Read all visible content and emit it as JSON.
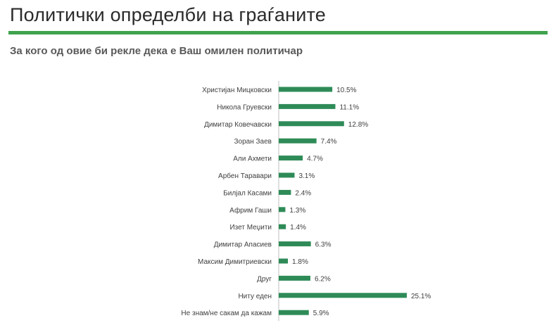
{
  "header": {
    "title": "Политички определби на граѓаните",
    "subtitle": "За кого од овие би рекле дека е Ваш омилен политичар",
    "accent_color": "#3fa34d"
  },
  "chart_data": {
    "type": "bar",
    "orientation": "horizontal",
    "title": "",
    "xlabel": "",
    "ylabel": "",
    "xlim": [
      0,
      30
    ],
    "grid": false,
    "legend": "none",
    "bar_color": "#2e8b57",
    "categories": [
      "Христијан Мицковски",
      "Никола Груевски",
      "Димитар Ковечавски",
      "Зоран Заев",
      "Али Ахмети",
      "Арбен Таравари",
      "Билјал Касами",
      "Африм Гаши",
      "Изет Меџити",
      "Димитар Апасиев",
      "Максим Димитриевски",
      "Друг",
      "Ниту еден",
      "Не знам/не сакам да кажам"
    ],
    "values": [
      10.5,
      11.1,
      12.8,
      7.4,
      4.7,
      3.1,
      2.4,
      1.3,
      1.4,
      6.3,
      1.8,
      6.2,
      25.1,
      5.9
    ],
    "value_labels": [
      "10.5%",
      "11.1%",
      "12.8%",
      "7.4%",
      "4.7%",
      "3.1%",
      "2.4%",
      "1.3%",
      "1.4%",
      "6.3%",
      "1.8%",
      "6.2%",
      "25.1%",
      "5.9%"
    ]
  }
}
